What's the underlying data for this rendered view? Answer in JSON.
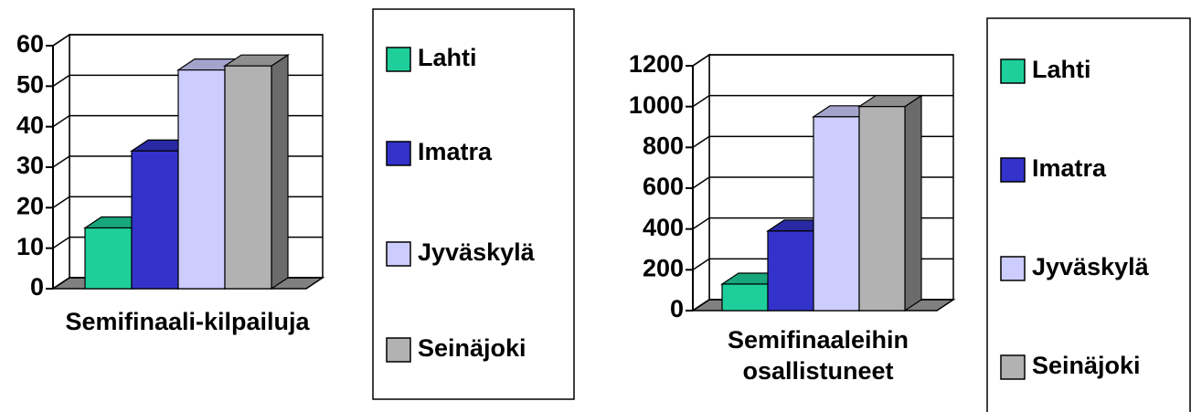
{
  "chart_data": [
    {
      "type": "bar",
      "categories": [
        "Semifinaali-kilpailuja"
      ],
      "series": [
        {
          "name": "Lahti",
          "color": "#1ecf9c",
          "values": [
            15
          ]
        },
        {
          "name": "Imatra",
          "color": "#3333cc",
          "values": [
            34
          ]
        },
        {
          "name": "Jyväskylä",
          "color": "#ccccff",
          "values": [
            54
          ]
        },
        {
          "name": "Seinäjoki",
          "color": "#b2b2b2",
          "values": [
            55
          ]
        }
      ],
      "ylim": [
        0,
        60
      ],
      "yticks": [
        0,
        10,
        20,
        30,
        40,
        50,
        60
      ],
      "grid": true,
      "legend": "right"
    },
    {
      "type": "bar",
      "categories": [
        "Semifinaaleihin osallistuneet"
      ],
      "series": [
        {
          "name": "Lahti",
          "color": "#1ecf9c",
          "values": [
            130
          ]
        },
        {
          "name": "Imatra",
          "color": "#3333cc",
          "values": [
            390
          ]
        },
        {
          "name": "Jyväskylä",
          "color": "#ccccff",
          "values": [
            950
          ]
        },
        {
          "name": "Seinäjoki",
          "color": "#b2b2b2",
          "values": [
            1000
          ]
        }
      ],
      "ylim": [
        0,
        1200
      ],
      "yticks": [
        0,
        200,
        400,
        600,
        800,
        1000,
        1200
      ],
      "grid": true,
      "legend": "right"
    }
  ]
}
